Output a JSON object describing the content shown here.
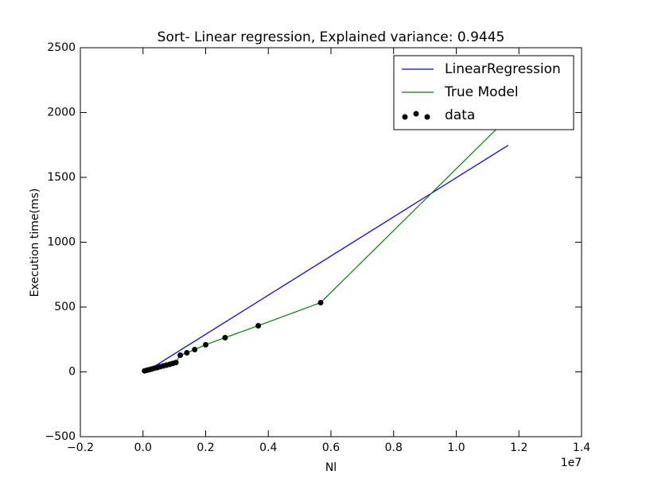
{
  "chart_data": {
    "type": "line",
    "title": "Sort- Linear regression, Explained variance: 0.9445",
    "x_label": "Nl",
    "y_label": "Execution time(ms)",
    "x_offset_label": "1e7",
    "xlim": [
      -0.2,
      1.4
    ],
    "ylim": [
      -500,
      2500
    ],
    "xticks": [
      {
        "value": -0.2,
        "label": "−0.2"
      },
      {
        "value": 0,
        "label": "0.0"
      },
      0.2,
      0.4,
      0.6,
      0.8,
      {
        "value": 1,
        "label": "1.0"
      },
      1.2,
      1.4
    ],
    "yticks": [
      {
        "value": -500,
        "label": "−500"
      },
      0,
      500,
      1000,
      1500,
      2000,
      2500
    ],
    "legend_position": "upper right",
    "series": [
      {
        "name": "LinearRegression",
        "kind": "line",
        "color": "#0000ff",
        "x": [
          0.005,
          1.166
        ],
        "values": [
          -5,
          1748
        ]
      },
      {
        "name": "True Model",
        "kind": "line",
        "color": "#008000",
        "x": [
          0.005,
          0.012,
          0.02,
          0.028,
          0.036,
          0.045,
          0.055,
          0.065,
          0.075,
          0.085,
          0.095,
          0.105,
          0.119,
          0.14,
          0.165,
          0.2,
          0.262,
          0.368,
          0.567,
          1.165
        ],
        "values": [
          8,
          12,
          17,
          22,
          28,
          33,
          40,
          46,
          52,
          58,
          65,
          72,
          129,
          147,
          172,
          209,
          264,
          356,
          534,
          1960
        ]
      },
      {
        "name": "data",
        "kind": "scatter",
        "color": "#000000",
        "x": [
          0.005,
          0.012,
          0.02,
          0.028,
          0.036,
          0.045,
          0.055,
          0.065,
          0.075,
          0.085,
          0.095,
          0.105,
          0.119,
          0.14,
          0.165,
          0.2,
          0.262,
          0.368,
          0.567
        ],
        "values": [
          8,
          12,
          17,
          22,
          28,
          33,
          40,
          46,
          52,
          58,
          65,
          72,
          129,
          147,
          172,
          209,
          264,
          356,
          534
        ]
      }
    ]
  }
}
